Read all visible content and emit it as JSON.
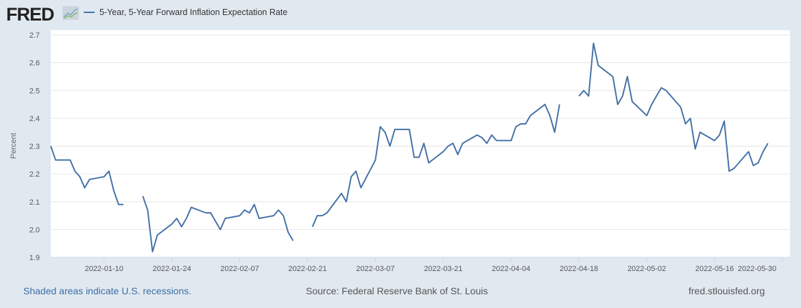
{
  "header": {
    "logo_text": "FRED",
    "legend_label": "5-Year, 5-Year Forward Inflation Expectation Rate"
  },
  "footer": {
    "recessions_note": "Shaded areas indicate U.S. recessions.",
    "source": "Source: Federal Reserve Bank of St. Louis",
    "site": "fred.stlouisfed.org"
  },
  "colors": {
    "line": "#4572a7",
    "background": "#e1e9f0",
    "plot": "#ffffff",
    "grid": "#e6e6e6"
  },
  "chart_data": {
    "type": "line",
    "title": "5-Year, 5-Year Forward Inflation Expectation Rate",
    "xlabel": "",
    "ylabel": "Percent",
    "ylim": [
      1.9,
      2.7
    ],
    "yticks": [
      "1.9",
      "2.0",
      "2.1",
      "2.2",
      "2.3",
      "2.4",
      "2.5",
      "2.6",
      "2.7"
    ],
    "xlim": [
      "2021-12-30",
      "2022-05-31"
    ],
    "xticks": [
      "2022-01-10",
      "2022-01-24",
      "2022-02-07",
      "2022-02-21",
      "2022-03-07",
      "2022-03-21",
      "2022-04-04",
      "2022-04-18",
      "2022-05-02",
      "2022-05-16",
      "2022-05-30"
    ],
    "grid": true,
    "legend": "top-left",
    "series": [
      {
        "name": "5-Year, 5-Year Forward Inflation Expectation Rate",
        "points": [
          [
            "2021-12-30",
            2.3
          ],
          [
            "2021-12-31",
            2.25
          ],
          [
            "2022-01-03",
            2.25
          ],
          [
            "2022-01-04",
            2.21
          ],
          [
            "2022-01-05",
            2.19
          ],
          [
            "2022-01-06",
            2.15
          ],
          [
            "2022-01-07",
            2.18
          ],
          [
            "2022-01-10",
            2.19
          ],
          [
            "2022-01-11",
            2.21
          ],
          [
            "2022-01-12",
            2.14
          ],
          [
            "2022-01-13",
            2.09
          ],
          [
            "2022-01-14",
            2.09
          ],
          [
            "2022-01-17",
            null
          ],
          [
            "2022-01-18",
            2.12
          ],
          [
            "2022-01-19",
            2.07
          ],
          [
            "2022-01-20",
            1.92
          ],
          [
            "2022-01-21",
            1.98
          ],
          [
            "2022-01-24",
            2.02
          ],
          [
            "2022-01-25",
            2.04
          ],
          [
            "2022-01-26",
            2.01
          ],
          [
            "2022-01-27",
            2.04
          ],
          [
            "2022-01-28",
            2.08
          ],
          [
            "2022-01-31",
            2.06
          ],
          [
            "2022-02-01",
            2.06
          ],
          [
            "2022-02-02",
            2.03
          ],
          [
            "2022-02-03",
            2.0
          ],
          [
            "2022-02-04",
            2.04
          ],
          [
            "2022-02-07",
            2.05
          ],
          [
            "2022-02-08",
            2.07
          ],
          [
            "2022-02-09",
            2.06
          ],
          [
            "2022-02-10",
            2.09
          ],
          [
            "2022-02-11",
            2.04
          ],
          [
            "2022-02-14",
            2.05
          ],
          [
            "2022-02-15",
            2.07
          ],
          [
            "2022-02-16",
            2.05
          ],
          [
            "2022-02-17",
            1.99
          ],
          [
            "2022-02-18",
            1.96
          ],
          [
            "2022-02-21",
            null
          ],
          [
            "2022-02-22",
            2.01
          ],
          [
            "2022-02-23",
            2.05
          ],
          [
            "2022-02-24",
            2.05
          ],
          [
            "2022-02-25",
            2.06
          ],
          [
            "2022-02-28",
            2.13
          ],
          [
            "2022-03-01",
            2.1
          ],
          [
            "2022-03-02",
            2.19
          ],
          [
            "2022-03-03",
            2.21
          ],
          [
            "2022-03-04",
            2.15
          ],
          [
            "2022-03-07",
            2.25
          ],
          [
            "2022-03-08",
            2.37
          ],
          [
            "2022-03-09",
            2.35
          ],
          [
            "2022-03-10",
            2.3
          ],
          [
            "2022-03-11",
            2.36
          ],
          [
            "2022-03-14",
            2.36
          ],
          [
            "2022-03-15",
            2.26
          ],
          [
            "2022-03-16",
            2.26
          ],
          [
            "2022-03-17",
            2.31
          ],
          [
            "2022-03-18",
            2.24
          ],
          [
            "2022-03-21",
            2.28
          ],
          [
            "2022-03-22",
            2.3
          ],
          [
            "2022-03-23",
            2.31
          ],
          [
            "2022-03-24",
            2.27
          ],
          [
            "2022-03-25",
            2.31
          ],
          [
            "2022-03-28",
            2.34
          ],
          [
            "2022-03-29",
            2.33
          ],
          [
            "2022-03-30",
            2.31
          ],
          [
            "2022-03-31",
            2.34
          ],
          [
            "2022-04-01",
            2.32
          ],
          [
            "2022-04-04",
            2.32
          ],
          [
            "2022-04-05",
            2.37
          ],
          [
            "2022-04-06",
            2.38
          ],
          [
            "2022-04-07",
            2.38
          ],
          [
            "2022-04-08",
            2.41
          ],
          [
            "2022-04-11",
            2.45
          ],
          [
            "2022-04-12",
            2.41
          ],
          [
            "2022-04-13",
            2.35
          ],
          [
            "2022-04-14",
            2.45
          ],
          [
            "2022-04-15",
            null
          ],
          [
            "2022-04-18",
            2.48
          ],
          [
            "2022-04-19",
            2.5
          ],
          [
            "2022-04-20",
            2.48
          ],
          [
            "2022-04-21",
            2.67
          ],
          [
            "2022-04-22",
            2.59
          ],
          [
            "2022-04-25",
            2.55
          ],
          [
            "2022-04-26",
            2.45
          ],
          [
            "2022-04-27",
            2.48
          ],
          [
            "2022-04-28",
            2.55
          ],
          [
            "2022-04-29",
            2.46
          ],
          [
            "2022-05-02",
            2.41
          ],
          [
            "2022-05-03",
            2.45
          ],
          [
            "2022-05-04",
            2.48
          ],
          [
            "2022-05-05",
            2.51
          ],
          [
            "2022-05-06",
            2.5
          ],
          [
            "2022-05-09",
            2.44
          ],
          [
            "2022-05-10",
            2.38
          ],
          [
            "2022-05-11",
            2.4
          ],
          [
            "2022-05-12",
            2.29
          ],
          [
            "2022-05-13",
            2.35
          ],
          [
            "2022-05-16",
            2.32
          ],
          [
            "2022-05-17",
            2.34
          ],
          [
            "2022-05-18",
            2.39
          ],
          [
            "2022-05-19",
            2.21
          ],
          [
            "2022-05-20",
            2.22
          ],
          [
            "2022-05-23",
            2.28
          ],
          [
            "2022-05-24",
            2.23
          ],
          [
            "2022-05-25",
            2.24
          ],
          [
            "2022-05-26",
            2.28
          ],
          [
            "2022-05-27",
            2.31
          ]
        ]
      }
    ]
  }
}
